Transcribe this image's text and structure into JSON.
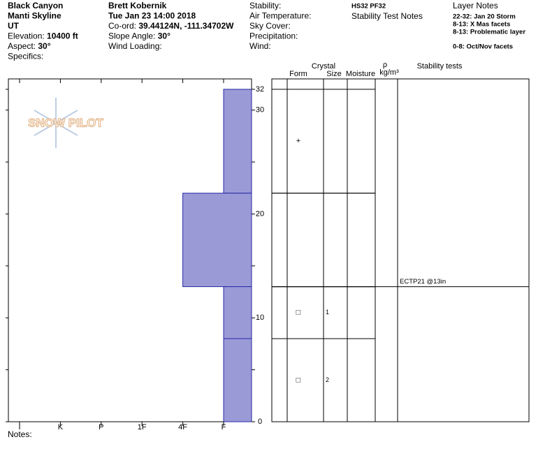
{
  "header": {
    "location": [
      {
        "text": "Black Canyon"
      },
      {
        "text": "Manti Skyline"
      },
      {
        "text": "UT"
      },
      {
        "label": "Elevation:",
        "value": "10400 ft"
      },
      {
        "label": "Aspect:",
        "value": "30°"
      },
      {
        "label": "Specifics:"
      }
    ],
    "observer": [
      {
        "text": "Brett Kobernik"
      },
      {
        "text": "Tue Jan 23 14:00 2018"
      },
      {
        "label": "Co-ord:",
        "value": "39.44124N, -111.34702W"
      },
      {
        "label": "Slope Angle:",
        "value": "30°"
      },
      {
        "label": "Wind Loading:"
      }
    ],
    "conditions": [
      {
        "label": "Stability:"
      },
      {
        "label": "Air Temperature:"
      },
      {
        "label": "Sky Cover:"
      },
      {
        "label": "Precipitation:"
      },
      {
        "label": "Wind:"
      }
    ],
    "summary": {
      "hs_pf": "HS32 PF32",
      "stability_test_notes": "Stability Test Notes"
    },
    "layer_notes": {
      "title": "Layer Notes",
      "notes": [
        "22-32: Jan 20 Storm",
        "8-13: X Mas facets",
        "8-13: Problematic layer",
        "0-8: Oct/Nov facets"
      ]
    }
  },
  "logo": "SNOW PILOT",
  "chart_data": {
    "type": "snow-profile",
    "hardness_scale": [
      "I",
      "K",
      "P",
      "1F",
      "4F",
      "F"
    ],
    "ylim": [
      0,
      33
    ],
    "yticks": [
      0,
      10,
      20,
      30,
      32
    ],
    "color": "#9a9ad6",
    "edge_color": "#2a2aa8",
    "layers": [
      {
        "bottom": 22,
        "top": 32,
        "hardness": "F",
        "form": "+"
      },
      {
        "bottom": 13,
        "top": 22,
        "hardness": "4F"
      },
      {
        "bottom": 8,
        "top": 13,
        "hardness": "F",
        "form": "□",
        "size": 1
      },
      {
        "bottom": 0,
        "top": 8,
        "hardness": "F",
        "form": "□",
        "size": 2
      }
    ],
    "stability_tests": [
      {
        "height": 13,
        "result": "ECTP21 @13in"
      }
    ]
  },
  "table": {
    "headers": {
      "crystal": "Crystal",
      "form": "Form",
      "size": "Size",
      "moisture": "Moisture",
      "density": "ρ",
      "density_unit": "kg/m³",
      "stability_tests": "Stability tests"
    }
  },
  "notes_label": "Notes:"
}
